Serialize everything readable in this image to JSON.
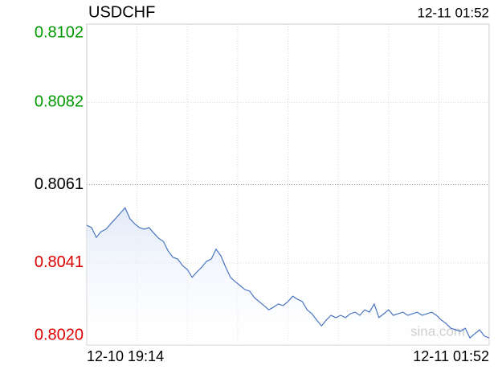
{
  "chart_data": {
    "type": "line",
    "title": "USDCHF",
    "timestamp": "12-11 01:52",
    "watermark": "sina.com",
    "categories": [
      "12-10 19:14",
      null,
      null,
      null,
      null,
      null,
      null,
      null,
      null,
      null,
      null,
      null,
      null,
      null,
      null,
      null,
      null,
      null,
      null,
      null,
      null,
      null,
      null,
      null,
      null,
      null,
      null,
      null,
      null,
      null,
      null,
      null,
      null,
      null,
      null,
      null,
      null,
      null,
      null,
      null,
      null,
      null,
      null,
      null,
      null,
      null,
      null,
      null,
      null,
      null,
      null,
      null,
      null,
      null,
      null,
      null,
      null,
      null,
      null,
      null,
      null,
      null,
      null,
      null,
      null,
      null,
      null,
      null,
      null,
      null,
      null,
      null,
      null,
      null,
      null,
      null,
      null,
      null,
      null,
      null,
      null,
      null,
      null,
      null,
      "12-11 01:52"
    ],
    "series": [
      {
        "name": "USDCHF",
        "color": "#4a76c0",
        "values": [
          0.80506,
          0.805,
          0.80475,
          0.8049,
          0.80496,
          0.8051,
          0.80523,
          0.80537,
          0.80551,
          0.80523,
          0.8051,
          0.805,
          0.80496,
          0.805,
          0.80486,
          0.80473,
          0.80465,
          0.8044,
          0.80424,
          0.8042,
          0.80403,
          0.80393,
          0.80373,
          0.80387,
          0.80399,
          0.80414,
          0.8042,
          0.80445,
          0.80428,
          0.80399,
          0.80373,
          0.80362,
          0.80352,
          0.80342,
          0.80338,
          0.80321,
          0.80311,
          0.80301,
          0.8029,
          0.80297,
          0.80305,
          0.80301,
          0.80311,
          0.80325,
          0.80317,
          0.80311,
          0.8029,
          0.8028,
          0.80264,
          0.80249,
          0.80264,
          0.80276,
          0.8027,
          0.80276,
          0.8027,
          0.8028,
          0.80284,
          0.80276,
          0.8029,
          0.80284,
          0.80305,
          0.8027,
          0.8028,
          0.8029,
          0.80276,
          0.8028,
          0.80284,
          0.80276,
          0.8028,
          0.80284,
          0.80276,
          0.8028,
          0.80284,
          0.80276,
          0.80264,
          0.80255,
          0.80243,
          0.80239,
          0.80235,
          0.80243,
          0.80218,
          0.80229,
          0.80239,
          0.80223,
          0.80218
        ]
      }
    ],
    "ylim": [
      0.802,
      0.8102
    ],
    "yticks": [
      0.8102,
      0.8082,
      0.8061,
      0.8041,
      {
        "value": 0.802,
        "label": "0.8020"
      }
    ],
    "reference": 0.8061,
    "up_color": "#009900",
    "down_color": "#dd0000",
    "flat_color": "#000000",
    "grid": true
  }
}
